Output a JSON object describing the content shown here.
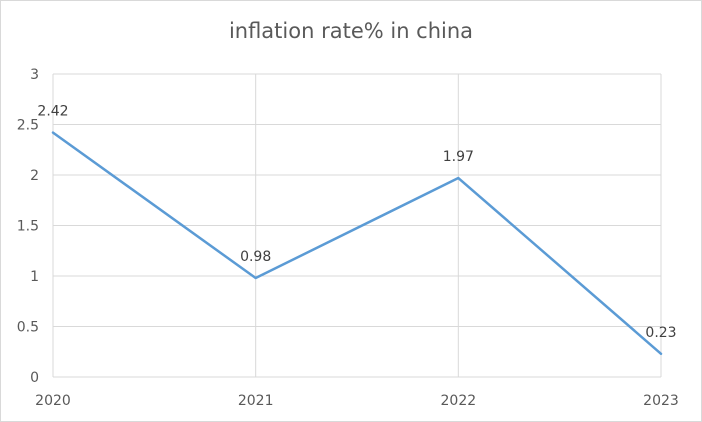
{
  "chart_data": {
    "type": "line",
    "title": "inflation rate% in china",
    "categories": [
      "2020",
      "2021",
      "2022",
      "2023"
    ],
    "series": [
      {
        "values": [
          2.42,
          0.98,
          1.97,
          0.23
        ],
        "color": "#5b9bd5"
      }
    ],
    "data_labels": [
      "2.42",
      "0.98",
      "1.97",
      "0.23"
    ],
    "ylim": [
      0,
      3
    ],
    "yticks": [
      "0",
      "0.5",
      "1",
      "1.5",
      "2",
      "2.5",
      "3"
    ],
    "grid": true,
    "legend": "none",
    "colors": {
      "grid": "#d9d9d9",
      "text": "#595959"
    }
  }
}
